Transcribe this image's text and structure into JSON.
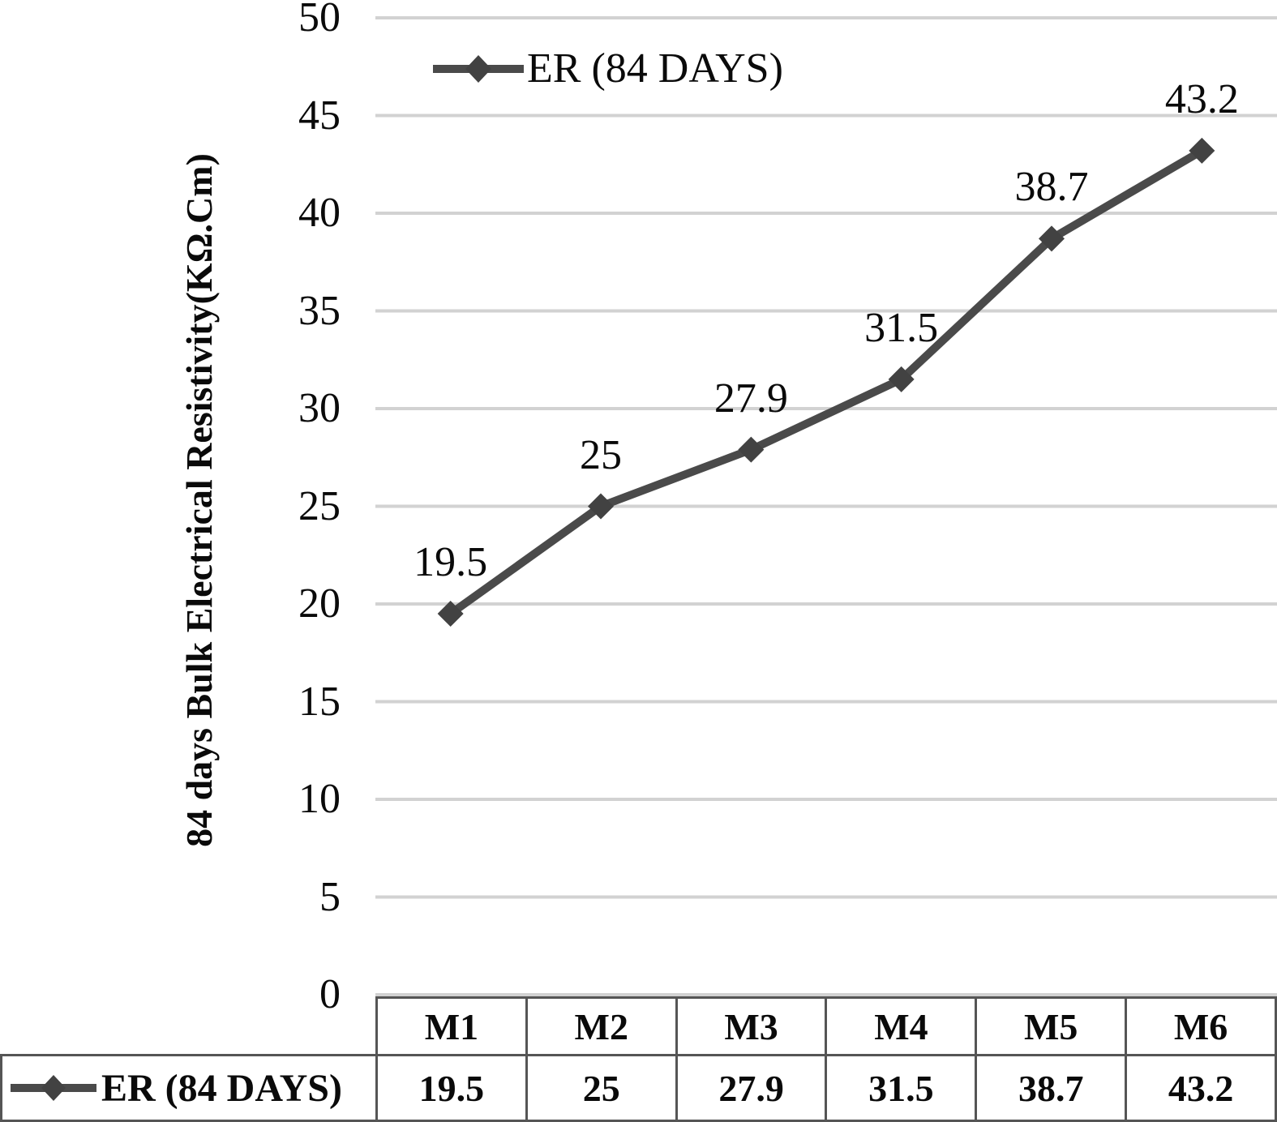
{
  "chart_data": {
    "type": "line",
    "series_name": "ER (84 DAYS)",
    "categories": [
      "M1",
      "M2",
      "M3",
      "M4",
      "M5",
      "M6"
    ],
    "values": [
      19.5,
      25,
      27.9,
      31.5,
      38.7,
      43.2
    ],
    "value_labels": [
      "19.5",
      "25",
      "27.9",
      "31.5",
      "38.7",
      "43.2"
    ],
    "ylabel": "84 days Bulk Electrical Resistivity(KΩ.Cm)",
    "ylim": [
      0,
      50
    ],
    "ytick_step": 5,
    "ytick_labels": [
      "0",
      "5",
      "10",
      "15",
      "20",
      "25",
      "30",
      "35",
      "40",
      "45",
      "50"
    ],
    "grid": "horizontal-on",
    "legend": {
      "label": "ER (84 DAYS)",
      "position": "top-inside"
    },
    "marker": "diamond",
    "colors": {
      "series_line": "#4a4a4a",
      "marker_fill": "#424242",
      "gridline": "#d2d2d2",
      "table_border": "#555555",
      "text": "#0a0a0a",
      "background": "#ffffff"
    },
    "data_table": {
      "row_label": "ER (84 DAYS)",
      "column_headers": [
        "M1",
        "M2",
        "M3",
        "M4",
        "M5",
        "M6"
      ],
      "cell_values": [
        "19.5",
        "25",
        "27.9",
        "31.5",
        "38.7",
        "43.2"
      ]
    }
  }
}
